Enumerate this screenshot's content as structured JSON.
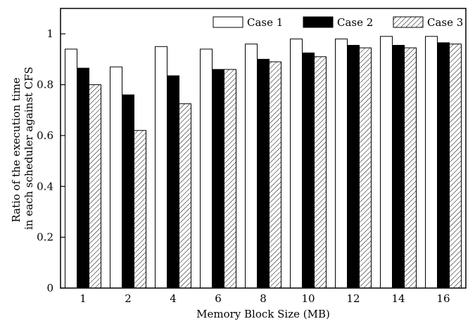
{
  "chart_data": {
    "type": "bar",
    "xlabel": "Memory Block Size (MB)",
    "ylabel_lines": [
      "Ratio of the execution time",
      "in each scheduler against CFS"
    ],
    "ylim": [
      0,
      1.1
    ],
    "yticks": [
      0,
      0.2,
      0.4,
      0.6,
      0.8,
      1
    ],
    "ytick_labels": [
      "0",
      "0.2",
      "0.4",
      "0.6",
      "0.8",
      "1"
    ],
    "categories": [
      "1",
      "2",
      "4",
      "6",
      "8",
      "10",
      "12",
      "14",
      "16"
    ],
    "series": [
      {
        "name": "Case 1",
        "fill": "#ffffff",
        "pattern": "none",
        "values": [
          0.94,
          0.87,
          0.95,
          0.94,
          0.96,
          0.98,
          0.98,
          0.99,
          0.99
        ]
      },
      {
        "name": "Case 2",
        "fill": "#000000",
        "pattern": "solid",
        "values": [
          0.865,
          0.76,
          0.835,
          0.86,
          0.9,
          0.925,
          0.955,
          0.955,
          0.965
        ]
      },
      {
        "name": "Case 3",
        "fill": "#ffffff",
        "pattern": "diagonal-hatch",
        "values": [
          0.8,
          0.62,
          0.725,
          0.86,
          0.89,
          0.91,
          0.945,
          0.945,
          0.96
        ]
      }
    ],
    "legend_position": "top-right",
    "grid": false
  }
}
